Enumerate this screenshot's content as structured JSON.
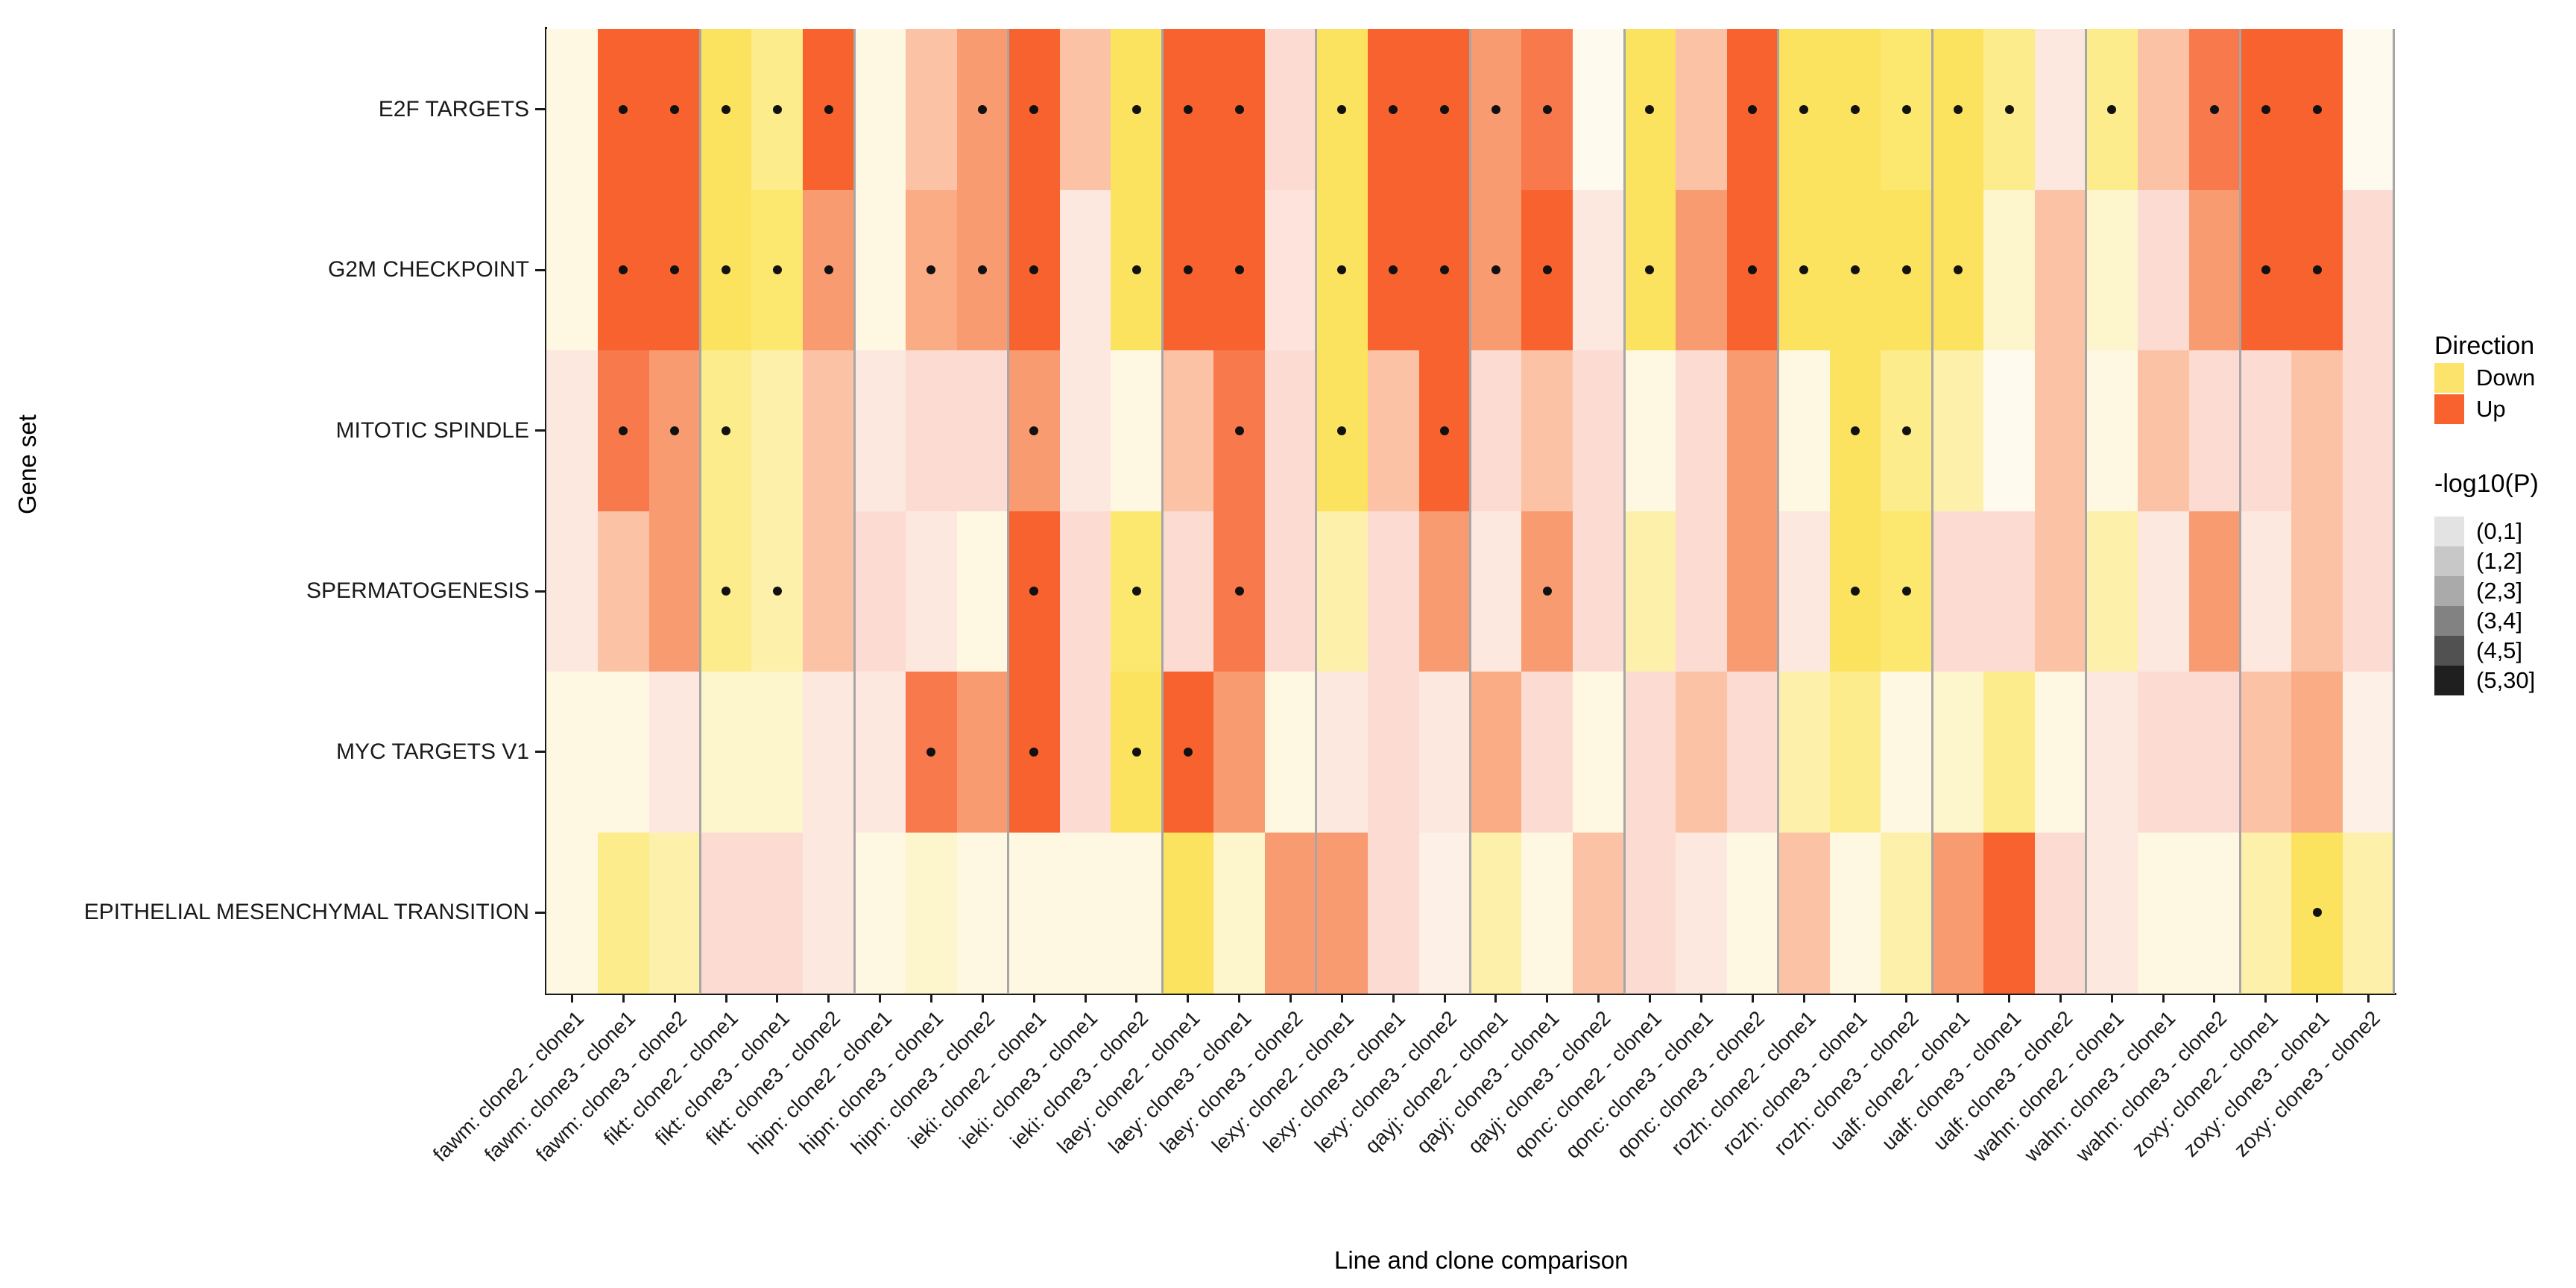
{
  "chart_data": {
    "type": "heatmap",
    "title": "",
    "xlabel": "Line and clone comparison",
    "ylabel": "Gene set",
    "grid": false,
    "legend_position": "right",
    "rows": [
      "E2F TARGETS",
      "G2M CHECKPOINT",
      "MITOTIC SPINDLE",
      "SPERMATOGENESIS",
      "MYC TARGETS V1",
      "EPITHELIAL MESENCHYMAL TRANSITION"
    ],
    "groups": [
      "fawm",
      "fikt",
      "hipn",
      "ieki",
      "laey",
      "lexy",
      "qayj",
      "qonc",
      "rozh",
      "ualf",
      "wahn",
      "zoxy"
    ],
    "columns": [
      "fawm: clone2 - clone1",
      "fawm: clone3 - clone1",
      "fawm: clone3 - clone2",
      "fikt: clone2 - clone1",
      "fikt: clone3 - clone1",
      "fikt: clone3 - clone2",
      "hipn: clone2 - clone1",
      "hipn: clone3 - clone1",
      "hipn: clone3 - clone2",
      "ieki: clone2 - clone1",
      "ieki: clone3 - clone1",
      "ieki: clone3 - clone2",
      "laey: clone2 - clone1",
      "laey: clone3 - clone1",
      "laey: clone3 - clone2",
      "lexy: clone2 - clone1",
      "lexy: clone3 - clone1",
      "lexy: clone3 - clone2",
      "qayj: clone2 - clone1",
      "qayj: clone3 - clone1",
      "qayj: clone3 - clone2",
      "qonc: clone2 - clone1",
      "qonc: clone3 - clone1",
      "qonc: clone3 - clone2",
      "rozh: clone2 - clone1",
      "rozh: clone3 - clone1",
      "rozh: clone3 - clone2",
      "ualf: clone2 - clone1",
      "ualf: clone3 - clone1",
      "ualf: clone3 - clone2",
      "wahn: clone2 - clone1",
      "wahn: clone3 - clone1",
      "wahn: clone3 - clone2",
      "zoxy: clone2 - clone1",
      "zoxy: clone3 - clone1",
      "zoxy: clone3 - clone2"
    ],
    "legend": {
      "direction": {
        "title": "Direction",
        "entries": [
          {
            "label": "Down",
            "color": "#FCE46C"
          },
          {
            "label": "Up",
            "color": "#F8622F"
          }
        ]
      },
      "pvalue": {
        "title": "-log10(P)",
        "entries": [
          {
            "label": "(0,1]",
            "color": "#E3E3E3"
          },
          {
            "label": "(1,2]",
            "color": "#C8C8C8"
          },
          {
            "label": "(2,3]",
            "color": "#AAAAAA"
          },
          {
            "label": "(3,4]",
            "color": "#828282"
          },
          {
            "label": "(4,5]",
            "color": "#515151"
          },
          {
            "label": "(5,30]",
            "color": "#1F1F1F"
          }
        ]
      }
    },
    "cell_colors": [
      [
        "#FEF8E3",
        "#F8622E",
        "#F8622E",
        "#FBE25F",
        "#FCEC8C",
        "#F8622E",
        "#FEF8E3",
        "#FBC2A5",
        "#F99B71",
        "#F8622E",
        "#FBC2A5",
        "#FBE25F",
        "#F8622E",
        "#F8622E",
        "#FCDCD2",
        "#FBE25F",
        "#F8622E",
        "#F8622E",
        "#F99B71",
        "#F87A4C",
        "#FEFBEE",
        "#FBE25F",
        "#FBC2A5",
        "#F8622E",
        "#FBE25F",
        "#FBE25F",
        "#FCE76F",
        "#FBE25F",
        "#FCEC8C",
        "#FDE8E0",
        "#FCEC8C",
        "#FBC2A5",
        "#F87A4C",
        "#F8622E",
        "#F8622E",
        "#FEFBEE"
      ],
      [
        "#FEF8E3",
        "#F8622E",
        "#F8622E",
        "#FBE25F",
        "#FCE76F",
        "#F99B71",
        "#FEF8E3",
        "#FAAC85",
        "#F99B71",
        "#F8622E",
        "#FDE8E0",
        "#FBE25F",
        "#F8622E",
        "#F8622E",
        "#FDE3DC",
        "#FBE25F",
        "#F8622E",
        "#F8622E",
        "#F99B71",
        "#F8622E",
        "#FDE8E0",
        "#FBE25F",
        "#F99B71",
        "#F8622E",
        "#FBE25F",
        "#FBE25F",
        "#FBE25F",
        "#FBE25F",
        "#FDF5CB",
        "#FBC2A5",
        "#FDF5CB",
        "#FCDCD2",
        "#F99B71",
        "#F8622E",
        "#F8622E",
        "#FCDCD2"
      ],
      [
        "#FDE8E0",
        "#F87A4C",
        "#F99B71",
        "#FCEC8C",
        "#FCF0AA",
        "#FBC2A5",
        "#FDE8E0",
        "#FCDCD2",
        "#FCDCD2",
        "#F99B71",
        "#FDE8E0",
        "#FEF8E3",
        "#FBC2A5",
        "#F87A4C",
        "#FCDCD2",
        "#FBE25F",
        "#FBC2A5",
        "#F8622E",
        "#FCDCD2",
        "#FBC2A5",
        "#FCDCD2",
        "#FEF8E3",
        "#FCDCD2",
        "#F99B71",
        "#FEF8E3",
        "#FBE25F",
        "#FCEC8C",
        "#FCF0AA",
        "#FEFBEE",
        "#FBC2A5",
        "#FEF8E3",
        "#FBC2A5",
        "#FCDCD2",
        "#FCDCD2",
        "#FBC2A5",
        "#FCDCD2"
      ],
      [
        "#FDE8E0",
        "#FBC2A5",
        "#F99B71",
        "#FCEC8C",
        "#FCF0AA",
        "#FBC2A5",
        "#FCDCD2",
        "#FDE8E0",
        "#FEF8E3",
        "#F8622E",
        "#FCDCD2",
        "#FCE76F",
        "#FCDCD2",
        "#F87A4C",
        "#FCDCD2",
        "#FCF0AA",
        "#FCDCD2",
        "#F99B71",
        "#FDE8E0",
        "#F99B71",
        "#FCDCD2",
        "#FCF0AA",
        "#FCDCD2",
        "#F99B71",
        "#FDE8E0",
        "#FBE25F",
        "#FCE76F",
        "#FCDCD2",
        "#FCDCD2",
        "#FBC2A5",
        "#FCF0AA",
        "#FDE8E0",
        "#F99B71",
        "#FDE8E0",
        "#FBC2A5",
        "#FCDCD2"
      ],
      [
        "#FEF8E3",
        "#FEF8E3",
        "#FDE8E0",
        "#FDF5CB",
        "#FDF5CB",
        "#FDE8E0",
        "#FDE8E0",
        "#F87A4C",
        "#F99B71",
        "#F8622E",
        "#FCDCD2",
        "#FBE25F",
        "#F8622E",
        "#F99B71",
        "#FEF8E3",
        "#FDE8E0",
        "#FCDCD2",
        "#FDE8E0",
        "#FAAC85",
        "#FCDCD2",
        "#FEF8E3",
        "#FCDCD2",
        "#FBC2A5",
        "#FCDCD2",
        "#FCF0AA",
        "#FCEC8C",
        "#FEF8E3",
        "#FDF5CB",
        "#FCEC8C",
        "#FEF8E3",
        "#FDE8E0",
        "#FCDCD2",
        "#FCDCD2",
        "#FBC2A5",
        "#FAAC85",
        "#FDF0E7"
      ],
      [
        "#FEF8E3",
        "#FCEC8C",
        "#FCF0AA",
        "#FCDCD2",
        "#FCDCD2",
        "#FDE8E0",
        "#FEF8E3",
        "#FDF5CB",
        "#FEF8E3",
        "#FEF8E3",
        "#FEF8E3",
        "#FEF8E3",
        "#FBE25F",
        "#FDF5CB",
        "#F99B71",
        "#F99B71",
        "#FCDCD2",
        "#FDF0E7",
        "#FCF0AA",
        "#FEF8E3",
        "#FBC2A5",
        "#FCDCD2",
        "#FDE8E0",
        "#FEF8E3",
        "#FBC2A5",
        "#FEF8E3",
        "#FCF0AA",
        "#F99B71",
        "#F8622E",
        "#FCDCD2",
        "#FDE8E0",
        "#FEF8E3",
        "#FEF8E3",
        "#FCF0AA",
        "#FBE25F",
        "#FCF0AA"
      ]
    ],
    "cell_dots": [
      [
        0,
        1,
        1,
        1,
        1,
        1,
        0,
        0,
        1,
        1,
        0,
        1,
        1,
        1,
        0,
        1,
        1,
        1,
        1,
        1,
        0,
        1,
        0,
        1,
        1,
        1,
        1,
        1,
        1,
        0,
        1,
        0,
        1,
        1,
        1,
        0
      ],
      [
        0,
        1,
        1,
        1,
        1,
        1,
        0,
        1,
        1,
        1,
        0,
        1,
        1,
        1,
        0,
        1,
        1,
        1,
        1,
        1,
        0,
        1,
        0,
        1,
        1,
        1,
        1,
        1,
        0,
        0,
        0,
        0,
        0,
        1,
        1,
        0
      ],
      [
        0,
        1,
        1,
        1,
        0,
        0,
        0,
        0,
        0,
        1,
        0,
        0,
        0,
        1,
        0,
        1,
        0,
        1,
        0,
        0,
        0,
        0,
        0,
        0,
        0,
        1,
        1,
        0,
        0,
        0,
        0,
        0,
        0,
        0,
        0,
        0
      ],
      [
        0,
        0,
        0,
        1,
        1,
        0,
        0,
        0,
        0,
        1,
        0,
        1,
        0,
        1,
        0,
        0,
        0,
        0,
        0,
        1,
        0,
        0,
        0,
        0,
        0,
        1,
        1,
        0,
        0,
        0,
        0,
        0,
        0,
        0,
        0,
        0
      ],
      [
        0,
        0,
        0,
        0,
        0,
        0,
        0,
        1,
        0,
        1,
        0,
        1,
        1,
        0,
        0,
        0,
        0,
        0,
        0,
        0,
        0,
        0,
        0,
        0,
        0,
        0,
        0,
        0,
        0,
        0,
        0,
        0,
        0,
        0,
        0,
        0
      ],
      [
        0,
        0,
        0,
        0,
        0,
        0,
        0,
        0,
        0,
        0,
        0,
        0,
        0,
        0,
        0,
        0,
        0,
        0,
        0,
        0,
        0,
        0,
        0,
        0,
        0,
        0,
        0,
        0,
        0,
        0,
        0,
        0,
        0,
        0,
        1,
        0
      ]
    ]
  }
}
